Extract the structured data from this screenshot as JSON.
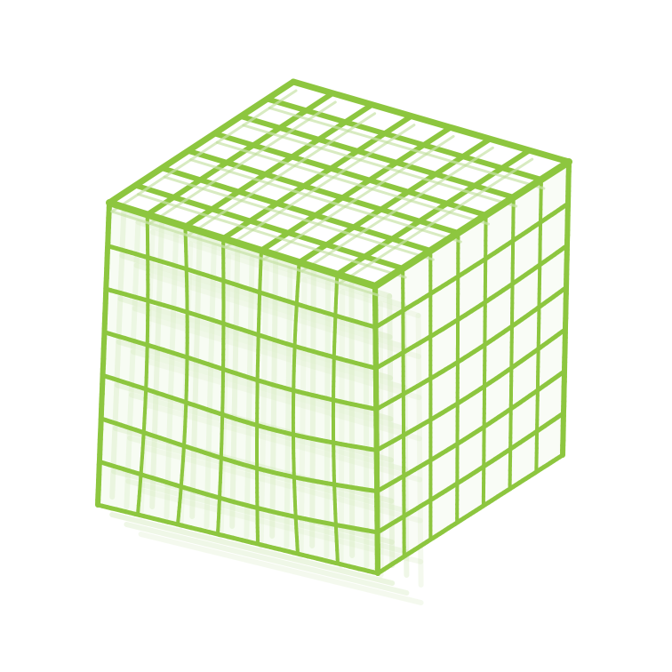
{
  "scene": {
    "subject": "lattice-cube",
    "grid_divisions": 7,
    "colors": {
      "background": "#ffffff",
      "strut": "#8dc63f",
      "strut_back": "#c8e3a8",
      "fill": "#e9f5dc"
    }
  }
}
